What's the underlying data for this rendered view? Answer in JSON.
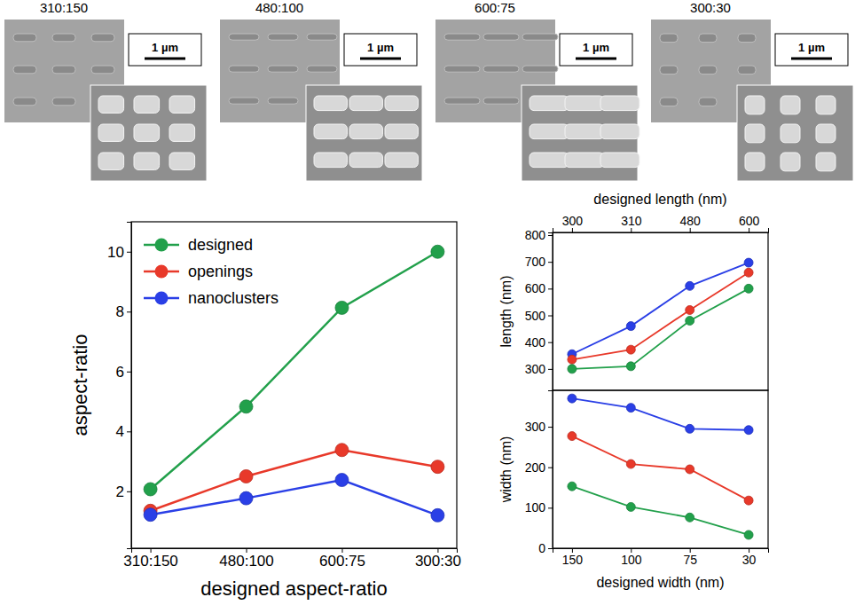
{
  "images": [
    {
      "title": "310:150",
      "scale_bar": "1 µm"
    },
    {
      "title": "480:100",
      "scale_bar": "1 µm"
    },
    {
      "title": "600:75",
      "scale_bar": "1 µm"
    },
    {
      "title": "300:30",
      "scale_bar": "1 µm"
    }
  ],
  "chart_data": [
    {
      "type": "line",
      "marker": "circle",
      "legend": "top-left",
      "xlabel": "designed aspect-ratio",
      "ylabel": "aspect-ratio",
      "categories": [
        "310:150",
        "480:100",
        "600:75",
        "300:30"
      ],
      "ylim": [
        0.1,
        11
      ],
      "yticks": [
        2,
        4,
        6,
        8,
        10
      ],
      "series": [
        {
          "name": "designed",
          "color": "#22a04b",
          "values": [
            2.07,
            4.83,
            8.13,
            10
          ]
        },
        {
          "name": "openings",
          "color": "#e8392a",
          "values": [
            1.35,
            2.5,
            3.38,
            2.82
          ]
        },
        {
          "name": "nanoclusters",
          "color": "#2a3fe6",
          "values": [
            1.22,
            1.77,
            2.38,
            1.2
          ]
        }
      ]
    },
    {
      "type": "line",
      "marker": "circle",
      "xlabel": "designed length (nm)",
      "ylabel": "length (nm)",
      "categories": [
        "300",
        "310",
        "480",
        "600"
      ],
      "ylim": [
        220,
        810
      ],
      "yticks": [
        300,
        400,
        500,
        600,
        700,
        800
      ],
      "series": [
        {
          "color": "#2a3fe6",
          "values": [
            355,
            460,
            610,
            697
          ]
        },
        {
          "color": "#e8392a",
          "values": [
            335,
            372,
            520,
            660
          ]
        },
        {
          "color": "#22a04b",
          "values": [
            300,
            310,
            480,
            600
          ]
        }
      ]
    },
    {
      "type": "line",
      "marker": "circle",
      "xlabel": "designed width (nm)",
      "ylabel": "width (nm)",
      "categories": [
        "150",
        "100",
        "75",
        "30"
      ],
      "ylim": [
        0,
        390
      ],
      "yticks": [
        0,
        100,
        200,
        300
      ],
      "series": [
        {
          "color": "#2a3fe6",
          "values": [
            370,
            347,
            295,
            292
          ]
        },
        {
          "color": "#e8392a",
          "values": [
            277,
            208,
            195,
            118
          ]
        },
        {
          "color": "#22a04b",
          "values": [
            153,
            102,
            76,
            33
          ]
        }
      ]
    }
  ]
}
